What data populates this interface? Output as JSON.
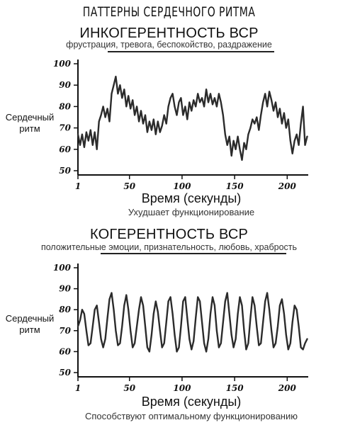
{
  "header": {
    "title": "ПАТТЕРНЫ СЕРДЕЧНОГО РИТМА"
  },
  "charts": [
    {
      "title": "ИНКОГЕРЕНТНОСТЬ ВСР",
      "subtitle": "фрустрация, тревога, беспокойство, раздражение",
      "ylabel_line1": "Сердечный",
      "ylabel_line2": "ритм",
      "xlabel": "Время (секунды)",
      "caption": "Ухудшает функционирование"
    },
    {
      "title": "КОГЕРЕНТНОСТЬ ВСР",
      "subtitle": "положительные эмоции, признательность, любовь, храбрость",
      "ylabel_line1": "Сердечный",
      "ylabel_line2": "ритм",
      "xlabel": "Время (секунды)",
      "caption": "Способствуют оптимальному функционированию"
    }
  ],
  "chart_data": [
    {
      "type": "line",
      "title": "ИНКОГЕРЕНТНОСТЬ ВСР",
      "xlabel": "Время (секунды)",
      "ylabel": "Сердечный ритм",
      "xlim": [
        1,
        220
      ],
      "ylim": [
        50,
        100
      ],
      "xticks": [
        1,
        50,
        100,
        150,
        200
      ],
      "yticks": [
        50,
        60,
        70,
        80,
        90,
        100
      ],
      "grid": false,
      "x": [
        1,
        3,
        5,
        7,
        9,
        11,
        13,
        15,
        17,
        19,
        21,
        23,
        25,
        27,
        29,
        31,
        33,
        35,
        37,
        39,
        41,
        43,
        45,
        47,
        49,
        51,
        53,
        55,
        57,
        59,
        61,
        63,
        65,
        67,
        69,
        71,
        73,
        75,
        77,
        79,
        81,
        83,
        85,
        87,
        89,
        91,
        93,
        95,
        97,
        99,
        101,
        103,
        105,
        107,
        109,
        111,
        113,
        115,
        117,
        119,
        121,
        123,
        125,
        127,
        129,
        131,
        133,
        135,
        137,
        139,
        141,
        143,
        145,
        147,
        149,
        151,
        153,
        155,
        157,
        159,
        161,
        163,
        165,
        167,
        169,
        171,
        173,
        175,
        177,
        179,
        181,
        183,
        185,
        187,
        189,
        191,
        193,
        195,
        197,
        199,
        201,
        203,
        205,
        207,
        209,
        211,
        213,
        215,
        217,
        219
      ],
      "values": [
        67,
        62,
        67,
        61,
        68,
        64,
        69,
        62,
        68,
        60,
        73,
        76,
        80,
        75,
        79,
        73,
        86,
        90,
        94,
        86,
        90,
        84,
        88,
        80,
        85,
        79,
        83,
        76,
        80,
        73,
        78,
        72,
        76,
        68,
        73,
        69,
        74,
        67,
        73,
        68,
        71,
        76,
        72,
        80,
        84,
        86,
        80,
        76,
        82,
        84,
        76,
        80,
        74,
        82,
        78,
        83,
        80,
        86,
        82,
        84,
        80,
        88,
        82,
        86,
        81,
        84,
        80,
        86,
        82,
        76,
        67,
        62,
        66,
        57,
        64,
        60,
        66,
        60,
        55,
        63,
        60,
        67,
        70,
        74,
        72,
        75,
        69,
        76,
        82,
        86,
        80,
        87,
        83,
        78,
        82,
        75,
        79,
        72,
        77,
        70,
        74,
        64,
        58,
        64,
        67,
        62,
        72,
        80,
        62,
        66
      ]
    },
    {
      "type": "line",
      "title": "КОГЕРЕНТНОСТЬ ВСР",
      "xlabel": "Время (секунды)",
      "ylabel": "Сердечный ритм",
      "xlim": [
        1,
        220
      ],
      "ylim": [
        50,
        100
      ],
      "xticks": [
        1,
        50,
        100,
        150,
        200
      ],
      "yticks": [
        50,
        60,
        70,
        80,
        90,
        100
      ],
      "grid": false,
      "x": [
        1,
        3,
        5,
        7,
        9,
        11,
        13,
        15,
        17,
        19,
        21,
        23,
        25,
        27,
        29,
        31,
        33,
        35,
        37,
        39,
        41,
        43,
        45,
        47,
        49,
        51,
        53,
        55,
        57,
        59,
        61,
        63,
        65,
        67,
        69,
        71,
        73,
        75,
        77,
        79,
        81,
        83,
        85,
        87,
        89,
        91,
        93,
        95,
        97,
        99,
        101,
        103,
        105,
        107,
        109,
        111,
        113,
        115,
        117,
        119,
        121,
        123,
        125,
        127,
        129,
        131,
        133,
        135,
        137,
        139,
        141,
        143,
        145,
        147,
        149,
        151,
        153,
        155,
        157,
        159,
        161,
        163,
        165,
        167,
        169,
        171,
        173,
        175,
        177,
        179,
        181,
        183,
        185,
        187,
        189,
        191,
        193,
        195,
        197,
        199,
        201,
        203,
        205,
        207,
        209,
        211,
        213,
        215,
        217,
        219
      ],
      "values": [
        72,
        75,
        80,
        78,
        70,
        63,
        64,
        72,
        80,
        82,
        74,
        66,
        62,
        66,
        76,
        85,
        88,
        80,
        70,
        63,
        64,
        72,
        82,
        87,
        80,
        70,
        62,
        64,
        72,
        80,
        86,
        82,
        72,
        62,
        60,
        68,
        78,
        84,
        79,
        70,
        62,
        64,
        74,
        84,
        86,
        78,
        68,
        60,
        62,
        72,
        84,
        86,
        76,
        66,
        61,
        65,
        76,
        86,
        84,
        74,
        64,
        60,
        66,
        78,
        86,
        82,
        70,
        62,
        64,
        74,
        84,
        88,
        78,
        68,
        62,
        66,
        78,
        86,
        82,
        70,
        61,
        64,
        76,
        86,
        82,
        72,
        63,
        64,
        74,
        84,
        88,
        80,
        70,
        62,
        64,
        72,
        82,
        85,
        78,
        68,
        61,
        64,
        74,
        82,
        80,
        72,
        62,
        61,
        64,
        66
      ]
    }
  ]
}
